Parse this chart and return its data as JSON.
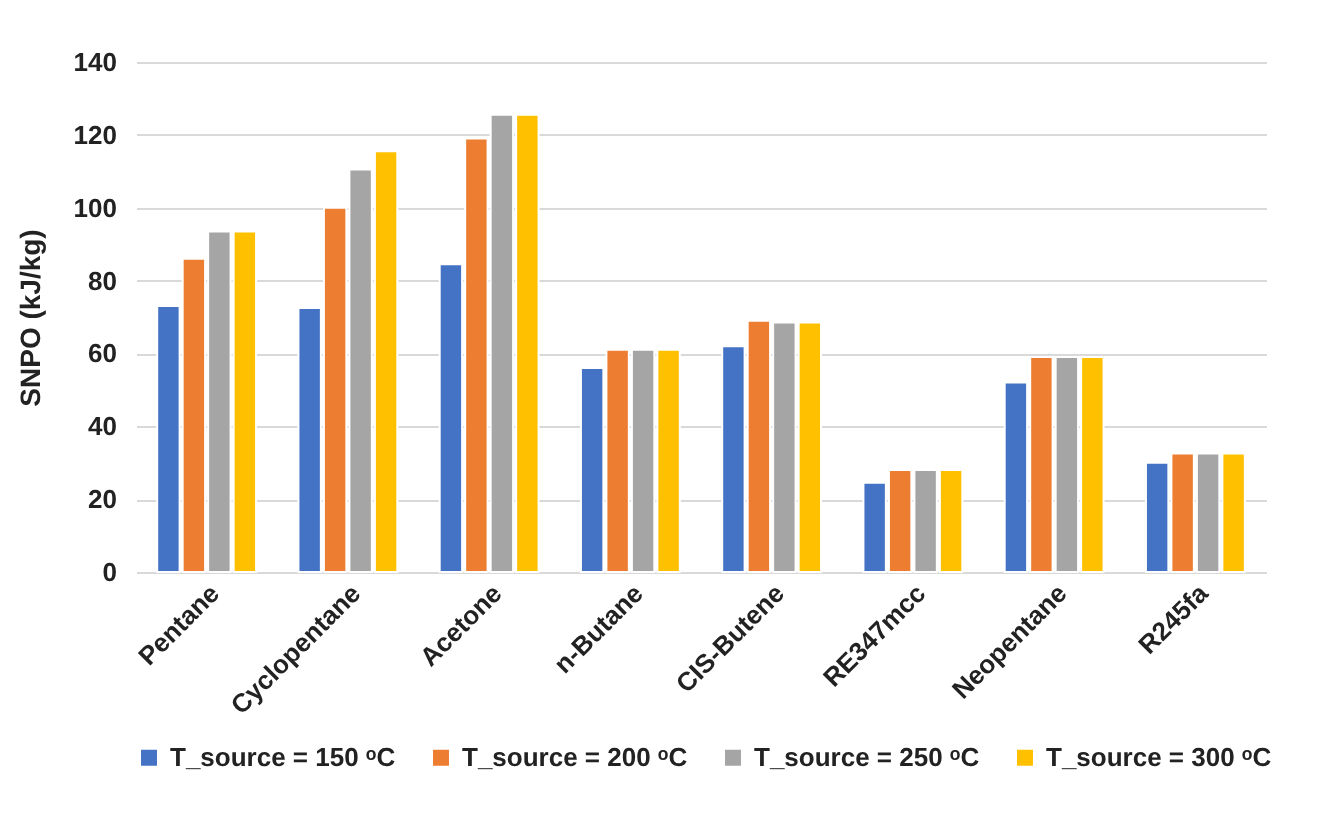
{
  "chart_data": {
    "type": "bar",
    "ylabel": "SNPO (kJ/kg)",
    "categories": [
      "Pentane",
      "Cyclopentane",
      "Acetone",
      "n-Butane",
      "CIS-Butene",
      "RE347mcc",
      "Neopentane",
      "R245fa"
    ],
    "series": [
      {
        "name": "T_source = 150 ᵒC",
        "color": "#4472c4",
        "values": [
          73,
          72.5,
          84.5,
          56,
          62,
          24.5,
          52,
          30
        ]
      },
      {
        "name": "T_source = 200 ᵒC",
        "color": "#ed7d31",
        "values": [
          86,
          100,
          119,
          61,
          69,
          28,
          59,
          32.5
        ]
      },
      {
        "name": "T_source = 250 ᵒC",
        "color": "#a5a5a5",
        "values": [
          93.5,
          110.5,
          125.5,
          61,
          68.5,
          28,
          59,
          32.5
        ]
      },
      {
        "name": "T_source = 300 ᵒC",
        "color": "#ffc000",
        "values": [
          93.5,
          115.5,
          125.5,
          61,
          68.5,
          28,
          59,
          32.5
        ]
      }
    ],
    "ylim": [
      0,
      140
    ],
    "yticks": [
      0,
      20,
      40,
      60,
      80,
      100,
      120,
      140
    ],
    "grid": "y",
    "legend": "bottom"
  }
}
